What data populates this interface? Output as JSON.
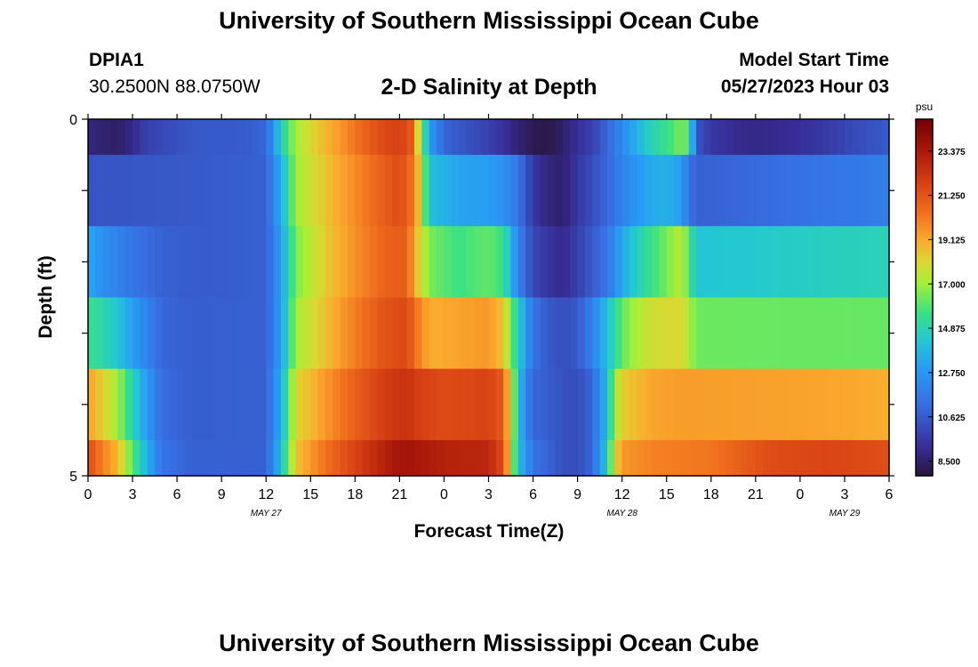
{
  "header": {
    "title": "University of Southern Mississippi Ocean Cube",
    "station": "DPIA1",
    "coords": "30.2500N  88.0750W",
    "plot_title": "2-D Salinity at Depth",
    "model_label": "Model Start Time",
    "model_time": "05/27/2023 Hour 03"
  },
  "footer": {
    "title": "University of Southern Mississippi Ocean Cube"
  },
  "chart_data": {
    "type": "heatmap",
    "title": "2-D Salinity at Depth",
    "xlabel": "Forecast Time(Z)",
    "ylabel": "Depth (ft)",
    "x_tick_labels": [
      "0",
      "3",
      "6",
      "9",
      "12",
      "15",
      "18",
      "21",
      "0",
      "3",
      "6",
      "9",
      "12",
      "15",
      "18",
      "21",
      "0",
      "3",
      "6"
    ],
    "date_labels": [
      {
        "label": "MAY 27",
        "hour": 12
      },
      {
        "label": "MAY 28",
        "hour": 36
      },
      {
        "label": "MAY 29",
        "hour": 51
      }
    ],
    "x_range_hours": [
      0,
      54
    ],
    "y_range_ft": [
      0,
      5
    ],
    "y_tick_labels": [
      "0",
      "5"
    ],
    "colorbar": {
      "unit": "psu",
      "range": [
        7.8,
        24.9
      ],
      "ticks": [
        "8.500",
        "10.625",
        "12.750",
        "14.875",
        "17.000",
        "19.125",
        "21.250",
        "23.375"
      ],
      "tick_values": [
        8.5,
        10.625,
        12.75,
        14.875,
        17.0,
        19.125,
        21.25,
        23.375
      ]
    },
    "depth_layers_ft": [
      0,
      1,
      2,
      3,
      4,
      5
    ],
    "profiles": [
      [
        [
          0,
          8.8
        ],
        [
          1,
          8.6
        ],
        [
          2,
          8.4
        ],
        [
          3,
          9.0
        ],
        [
          4,
          9.8
        ],
        [
          5,
          10.1
        ],
        [
          6,
          10.3
        ],
        [
          7,
          10.5
        ],
        [
          8,
          10.6
        ],
        [
          9,
          10.6
        ],
        [
          10,
          10.6
        ],
        [
          11,
          10.7
        ],
        [
          12,
          11.0
        ],
        [
          12.5,
          12.8
        ],
        [
          13,
          14.5
        ],
        [
          13.5,
          16.0
        ],
        [
          14,
          17.0
        ],
        [
          15,
          18.0
        ],
        [
          16,
          18.8
        ],
        [
          17,
          19.5
        ],
        [
          18,
          20.3
        ],
        [
          19,
          21.0
        ],
        [
          20,
          21.6
        ],
        [
          21,
          21.8
        ],
        [
          21.7,
          21.5
        ],
        [
          22,
          19.5
        ],
        [
          22.5,
          16.5
        ],
        [
          23,
          13.0
        ],
        [
          24,
          11.0
        ],
        [
          25,
          10.5
        ],
        [
          26,
          10.2
        ],
        [
          27,
          9.8
        ],
        [
          28,
          9.3
        ],
        [
          29,
          8.6
        ],
        [
          30,
          8.2
        ],
        [
          31,
          8.0
        ],
        [
          32,
          8.5
        ],
        [
          33,
          9.2
        ],
        [
          34,
          9.8
        ],
        [
          35,
          11.0
        ],
        [
          36,
          12.3
        ],
        [
          37,
          13.6
        ],
        [
          38,
          14.8
        ],
        [
          39,
          15.5
        ],
        [
          40,
          16.5
        ],
        [
          40.5,
          16.0
        ],
        [
          41,
          10.5
        ],
        [
          42,
          9.5
        ],
        [
          44,
          9.0
        ],
        [
          45,
          8.9
        ],
        [
          46,
          9.0
        ],
        [
          48,
          9.2
        ],
        [
          50,
          9.6
        ],
        [
          52,
          10.2
        ],
        [
          54,
          10.6
        ]
      ]
    ],
    "legend_note": "",
    "grid": false
  }
}
